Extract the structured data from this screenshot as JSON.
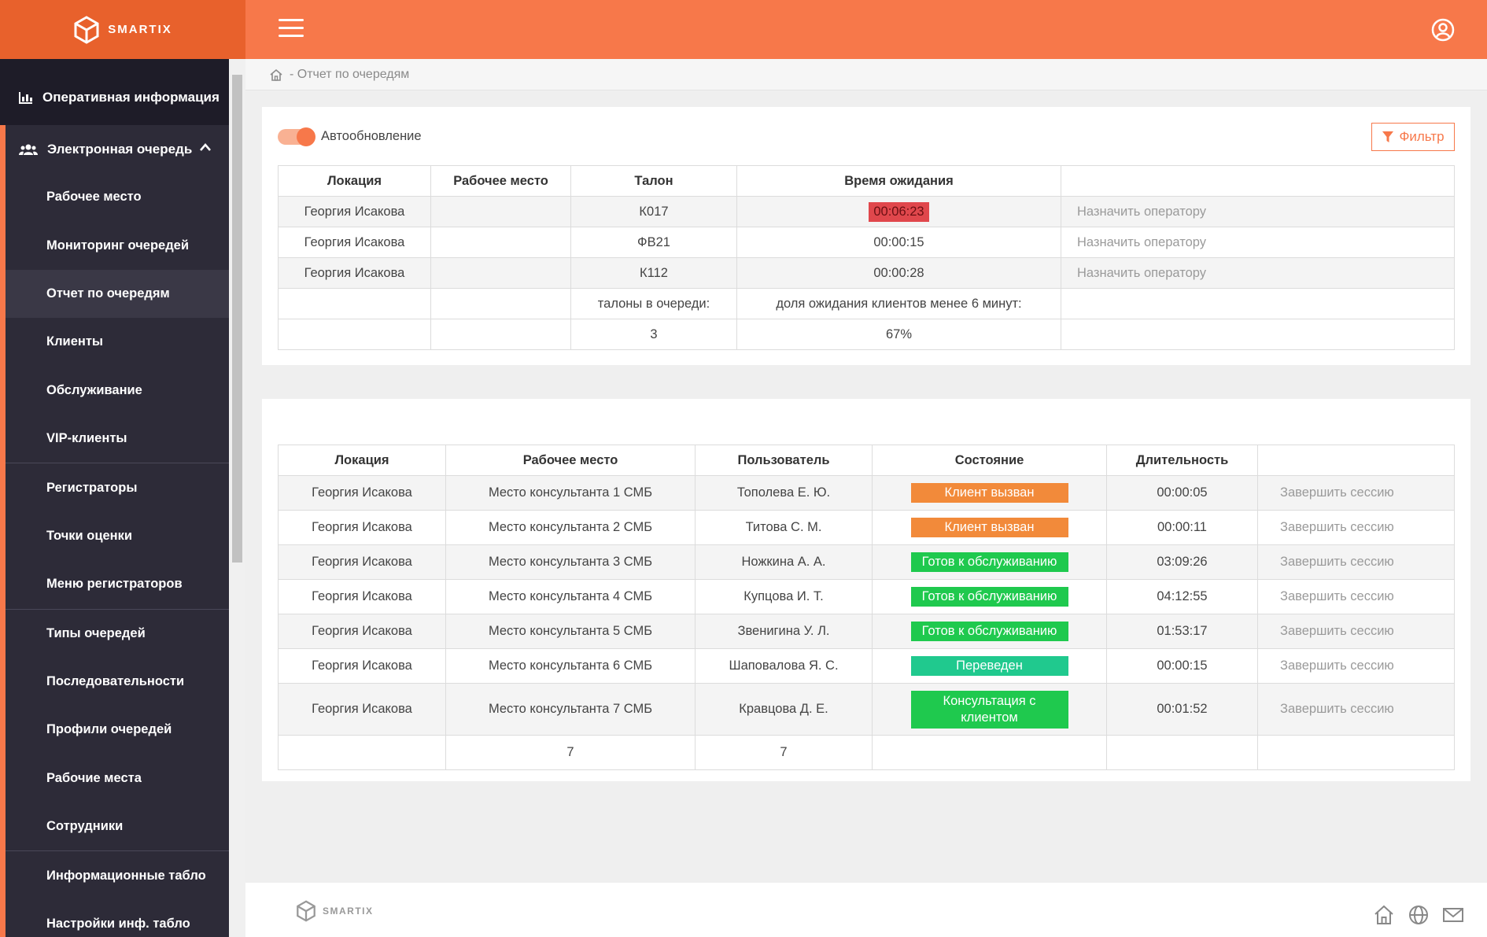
{
  "brand": {
    "logo_text": "SMARTIX",
    "accent": "#f7784a",
    "header_dark": "#e8612c"
  },
  "header": {
    "menu_icon": "hamburger-icon",
    "user_icon": "user-circle-icon"
  },
  "sidebar": {
    "top_item": "Оперативная информация",
    "section": "Электронная очередь",
    "items": [
      "Рабочее место",
      "Мониторинг очередей",
      "Отчет по очередям",
      "Клиенты",
      "Обслуживание",
      "VIP-клиенты",
      "Регистраторы",
      "Точки оценки",
      "Меню регистраторов",
      "Типы очередей",
      "Последовательности",
      "Профили очередей",
      "Рабочие места",
      "Сотрудники",
      "Информационные табло",
      "Настройки инф. табло"
    ]
  },
  "breadcrumb": {
    "text": "- Отчет по очередям"
  },
  "queue_card": {
    "auto_update_label": "Автообновление",
    "filter_label": "Фильтр",
    "headers": [
      "Локация",
      "Рабочее место",
      "Талон",
      "Время ожидания",
      ""
    ],
    "rows": [
      {
        "location": "Георгия Исакова",
        "workplace": "",
        "ticket": "К017",
        "wait": "00:06:23",
        "action": "Назначить оператору"
      },
      {
        "location": "Георгия Исакова",
        "workplace": "",
        "ticket": "ФВ21",
        "wait": "00:00:15",
        "action": "Назначить оператору"
      },
      {
        "location": "Георгия Исакова",
        "workplace": "",
        "ticket": "К112",
        "wait": "00:00:28",
        "action": "Назначить оператору"
      }
    ],
    "summary_labels": {
      "tickets": "талоны в очереди:",
      "share": "доля ожидания клиентов менее 6 минут:"
    },
    "summary_values": {
      "tickets": "3",
      "share": "67%"
    }
  },
  "sessions_card": {
    "headers": [
      "Локация",
      "Рабочее место",
      "Пользователь",
      "Состояние",
      "Длительность",
      ""
    ],
    "rows": [
      {
        "location": "Георгия Исакова",
        "workplace": "Место консультанта 1 СМБ",
        "user": "Тополева Е. Ю.",
        "state": "Клиент вызван",
        "duration": "00:00:05",
        "action": "Завершить сессию"
      },
      {
        "location": "Георгия Исакова",
        "workplace": "Место консультанта 2 СМБ",
        "user": "Титова С. М.",
        "state": "Клиент вызван",
        "duration": "00:00:11",
        "action": "Завершить сессию"
      },
      {
        "location": "Георгия Исакова",
        "workplace": "Место консультанта 3 СМБ",
        "user": "Ножкина А. А.",
        "state": "Готов к обслуживанию",
        "duration": "03:09:26",
        "action": "Завершить сессию"
      },
      {
        "location": "Георгия Исакова",
        "workplace": "Место консультанта 4 СМБ",
        "user": "Купцова И. Т.",
        "state": "Готов к обслуживанию",
        "duration": "04:12:55",
        "action": "Завершить сессию"
      },
      {
        "location": "Георгия Исакова",
        "workplace": "Место консультанта 5 СМБ",
        "user": "Звенигина У. Л.",
        "state": "Готов к обслуживанию",
        "duration": "01:53:17",
        "action": "Завершить сессию"
      },
      {
        "location": "Георгия Исакова",
        "workplace": "Место консультанта 6 СМБ",
        "user": "Шаповалова Я. С.",
        "state": "Переведен",
        "duration": "00:00:15",
        "action": "Завершить сессию"
      },
      {
        "location": "Георгия Исакова",
        "workplace": "Место консультанта 7 СМБ",
        "user": "Кравцова Д. Е.",
        "state": "Консультация с клиентом",
        "duration": "00:01:52",
        "action": "Завершить сессию"
      }
    ],
    "totals": {
      "workplaces": "7",
      "users": "7"
    },
    "state_colors": {
      "called": "#f28a3a",
      "ready": "#1fc94e",
      "transferred": "#20c98e",
      "consulting": "#1fc94e"
    }
  },
  "footer": {
    "logo_text": "SMARTIX",
    "icons": [
      "home-icon",
      "globe-icon",
      "mail-icon"
    ]
  }
}
